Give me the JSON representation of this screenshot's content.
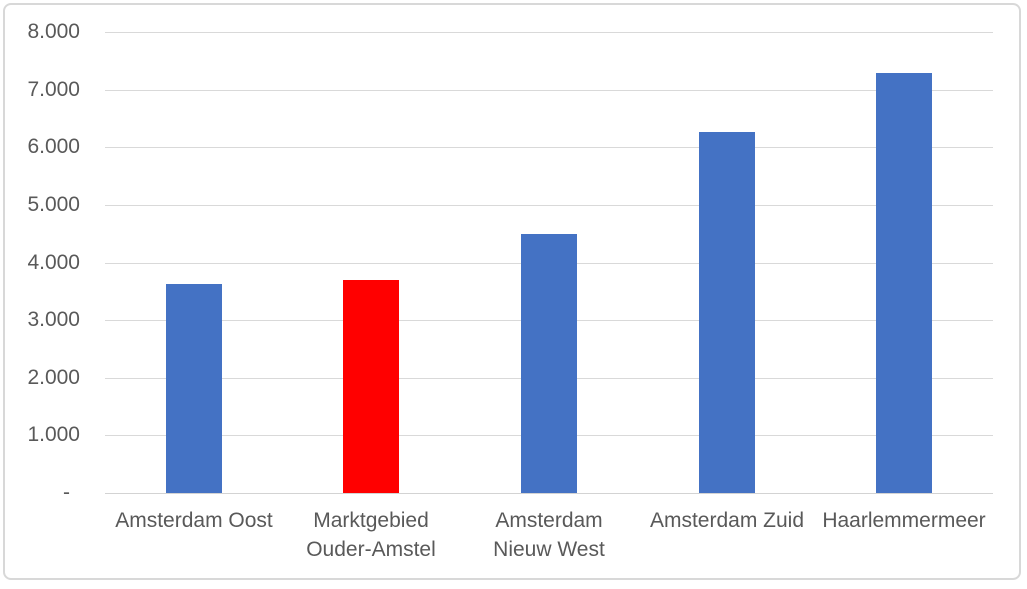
{
  "chart_data": {
    "type": "bar",
    "title": "",
    "xlabel": "",
    "ylabel": "",
    "categories": [
      "Amsterdam Oost",
      "Marktgebied Ouder-Amstel",
      "Amsterdam Nieuw West",
      "Amsterdam Zuid",
      "Haarlemmermeer"
    ],
    "category_lines": [
      [
        "Amsterdam Oost"
      ],
      [
        "Marktgebied",
        "Ouder-Amstel"
      ],
      [
        "Amsterdam",
        "Nieuw West"
      ],
      [
        "Amsterdam Zuid"
      ],
      [
        "Haarlemmermeer"
      ]
    ],
    "values": [
      3620,
      3690,
      4490,
      6260,
      7280
    ],
    "bar_colors": [
      "#4472C4",
      "#FF0000",
      "#4472C4",
      "#4472C4",
      "#4472C4"
    ],
    "highlighted_category": "Marktgebied Ouder-Amstel",
    "ylim": [
      0,
      8000
    ],
    "ytick_values": [
      0,
      1000,
      2000,
      3000,
      4000,
      5000,
      6000,
      7000,
      8000
    ],
    "ytick_labels": [
      "-",
      "1.000",
      "2.000",
      "3.000",
      "4.000",
      "5.000",
      "6.000",
      "7.000",
      "8.000"
    ],
    "grid": true,
    "legend": "none"
  },
  "colors": {
    "bar_default": "#4472C4",
    "bar_highlight": "#FF0000",
    "gridline": "#D9D9D9",
    "axis_text": "#595959",
    "frame_border": "#D8D8D8",
    "background": "#FFFFFF"
  }
}
